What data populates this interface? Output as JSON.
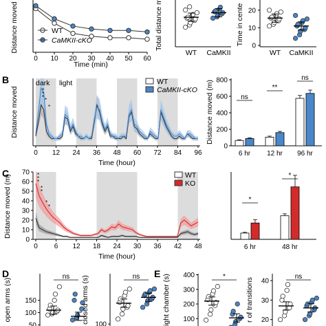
{
  "panels": [
    {
      "id": "A",
      "label": ""
    },
    {
      "id": "B",
      "label": "B"
    },
    {
      "id": "C",
      "label": "C"
    },
    {
      "id": "D",
      "label": "D"
    },
    {
      "id": "E",
      "label": "E"
    }
  ],
  "colors": {
    "wt": "#333333",
    "cko_blue": "#4a86c8",
    "ko_red": "#d42a2a",
    "shade": "#dcdcdc",
    "light_blue": "#a8c8ea",
    "light_red": "#f0a0a0"
  },
  "chart_data": [
    {
      "id": "A1",
      "type": "line",
      "title": "",
      "xlabel": "Time (min)",
      "ylabel": "Distance moved",
      "x": [
        0,
        10,
        20,
        30,
        40,
        50,
        60
      ],
      "xlim": [
        0,
        60
      ],
      "xticks": [
        "0",
        "10",
        "20",
        "30",
        "40",
        "50",
        "60"
      ],
      "legend": [
        "WT",
        "CaMKII-cKO"
      ],
      "series": [
        {
          "name": "WT",
          "values": [
            30,
            20,
            13,
            11,
            10,
            10,
            9
          ]
        },
        {
          "name": "CaMKII-cKO",
          "values": [
            32,
            23,
            18,
            16,
            15,
            15,
            14
          ]
        }
      ]
    },
    {
      "id": "A2",
      "type": "scatter",
      "ylabel": "Total distance m",
      "categories": [
        "WT",
        "CaMKII"
      ],
      "groups": [
        {
          "name": "WT",
          "mean": 62,
          "points": [
            40,
            45,
            50,
            55,
            58,
            60,
            62,
            65,
            68,
            72,
            78,
            85
          ]
        },
        {
          "name": "CaMKII",
          "mean": 72,
          "points": [
            60,
            63,
            66,
            70,
            72,
            74,
            76,
            80,
            84
          ]
        }
      ]
    },
    {
      "id": "A3",
      "type": "scatter",
      "ylabel": "Time in cente",
      "yticks": [
        "0",
        "10",
        "20"
      ],
      "ylim": [
        0,
        25
      ],
      "categories": [
        "WT",
        "CaMKII"
      ],
      "groups": [
        {
          "name": "WT",
          "mean": 15.5,
          "points": [
            11,
            12,
            13,
            14,
            15,
            15.5,
            16,
            17,
            18,
            19,
            20
          ]
        },
        {
          "name": "CaMKII",
          "mean": 11,
          "points": [
            4,
            6,
            8,
            9,
            10,
            11,
            12,
            13,
            14,
            15,
            17
          ]
        }
      ]
    },
    {
      "id": "B1",
      "type": "line",
      "xlabel": "Time (hour)",
      "ylabel": "Distance moved",
      "xticks": [
        "0",
        "12",
        "24",
        "36",
        "48",
        "60",
        "72",
        "84",
        "96"
      ],
      "xlim": [
        0,
        96
      ],
      "annotations": [
        "dark",
        "light"
      ],
      "dark_periods": [
        [
          0,
          12
        ],
        [
          24,
          36
        ],
        [
          48,
          60
        ],
        [
          72,
          84
        ]
      ],
      "legend": [
        "WT",
        "CaMKII-cKO"
      ],
      "series": [
        {
          "name": "WT",
          "values": [
            4,
            10,
            17,
            15,
            6,
            4,
            3,
            3,
            3,
            3,
            4,
            12,
            11,
            6,
            8,
            5,
            4,
            3,
            3,
            4,
            3,
            3,
            10,
            17,
            14,
            9,
            6,
            8,
            4,
            4,
            3,
            3,
            3,
            4,
            3,
            12,
            14,
            8,
            7,
            5,
            4,
            3,
            3,
            5,
            4,
            3,
            3,
            14,
            11,
            8,
            6,
            4,
            3,
            3,
            4,
            3,
            3,
            5,
            4,
            3,
            3,
            3
          ]
        },
        {
          "name": "CaMKII-cKO",
          "values": [
            5,
            14,
            24,
            22,
            9,
            5,
            4,
            3,
            3,
            4,
            5,
            13,
            12,
            7,
            9,
            6,
            4,
            4,
            3,
            4,
            3,
            4,
            11,
            16,
            15,
            10,
            7,
            9,
            5,
            4,
            4,
            3,
            4,
            4,
            4,
            13,
            15,
            9,
            8,
            6,
            5,
            4,
            3,
            6,
            5,
            4,
            3,
            15,
            12,
            9,
            7,
            5,
            4,
            4,
            5,
            4,
            3,
            5,
            5,
            4,
            3,
            3
          ]
        }
      ]
    },
    {
      "id": "B2",
      "type": "bar",
      "ylabel": "Distance moved (m)",
      "ylim": [
        0,
        800
      ],
      "yticks": [
        "0",
        "200",
        "400",
        "600",
        "800"
      ],
      "categories": [
        "6 hr",
        "12 hr",
        "96 hr"
      ],
      "series": [
        {
          "name": "WT",
          "values": [
            65,
            105,
            575
          ],
          "errors": [
            8,
            12,
            35
          ]
        },
        {
          "name": "CaMKII-cKO",
          "values": [
            88,
            160,
            635
          ],
          "errors": [
            10,
            15,
            40
          ]
        }
      ],
      "significance": [
        "ns",
        "**",
        "ns"
      ]
    },
    {
      "id": "C1",
      "type": "line",
      "xlabel": "Time (hour)",
      "ylabel": "Distance moved (m)",
      "ylim": [
        0,
        70
      ],
      "yticks": [
        "0",
        "10",
        "20",
        "30",
        "40",
        "50",
        "60",
        "70"
      ],
      "xticks": [
        "0",
        "6",
        "12",
        "18",
        "24",
        "30",
        "36",
        "42",
        "48"
      ],
      "xlim": [
        0,
        48
      ],
      "dark_periods": [
        [
          0,
          6
        ],
        [
          18,
          30
        ],
        [
          42,
          48
        ]
      ],
      "legend": [
        "WT",
        "KO"
      ],
      "series": [
        {
          "name": "WT",
          "values": [
            22,
            12,
            10,
            8,
            7,
            6,
            5,
            4,
            3,
            3,
            2,
            2,
            2,
            2,
            2,
            2,
            2,
            2,
            2,
            4,
            3,
            2,
            3,
            3,
            3,
            4,
            3,
            3,
            3,
            3,
            2,
            2,
            2,
            2,
            2,
            2,
            2,
            2,
            2,
            2,
            2,
            2,
            6,
            7,
            8,
            6,
            5,
            6
          ]
        },
        {
          "name": "KO",
          "values": [
            58,
            45,
            38,
            32,
            27,
            23,
            20,
            17,
            13,
            10,
            8,
            6,
            5,
            4,
            4,
            4,
            4,
            5,
            6,
            10,
            8,
            10,
            13,
            12,
            16,
            13,
            12,
            11,
            10,
            7,
            5,
            4,
            3,
            3,
            3,
            3,
            3,
            3,
            3,
            3,
            3,
            3,
            17,
            20,
            17,
            14,
            16,
            18
          ]
        }
      ]
    },
    {
      "id": "C2",
      "type": "bar",
      "categories": [
        "6 hr",
        "48 hr"
      ],
      "series": [
        {
          "name": "WT",
          "values": [
            65,
            245
          ],
          "errors": [
            8,
            20
          ]
        },
        {
          "name": "KO",
          "values": [
            170,
            545
          ],
          "errors": [
            35,
            120
          ]
        }
      ],
      "significance": [
        "*",
        "*"
      ]
    },
    {
      "id": "D1",
      "type": "scatter",
      "ylabel": "open arms (s)",
      "yticks": [
        "50",
        "100",
        "150"
      ],
      "categories": [
        "WT",
        "cKO"
      ],
      "significance": "ns",
      "groups": [
        {
          "name": "WT",
          "mean": 110,
          "points": [
            90,
            95,
            100,
            105,
            110,
            115,
            130,
            150,
            175,
            205
          ]
        },
        {
          "name": "cKO",
          "mean": 85,
          "points": [
            70,
            80,
            90,
            115,
            140,
            150,
            175
          ]
        }
      ]
    },
    {
      "id": "D2",
      "type": "scatter",
      "ylabel": "closed arms (s)",
      "yticks": [
        "100"
      ],
      "categories": [
        "WT",
        "cKO"
      ],
      "significance": "ns",
      "groups": [
        {
          "name": "WT",
          "mean": 225,
          "points": [
            130,
            160,
            190,
            200,
            210,
            230,
            250,
            270,
            290,
            310
          ]
        },
        {
          "name": "cKO",
          "mean": 260,
          "points": [
            200,
            220,
            240,
            250,
            260,
            270,
            280,
            290,
            300,
            310
          ]
        }
      ]
    },
    {
      "id": "E1",
      "type": "scatter",
      "ylabel": "ight chamber (s)",
      "yticks": [
        "0",
        "100",
        "200",
        "300",
        "400"
      ],
      "categories": [
        "WT",
        "cKO"
      ],
      "significance": "*",
      "groups": [
        {
          "name": "WT",
          "mean": 220,
          "points": [
            90,
            130,
            160,
            190,
            210,
            230,
            250,
            270,
            290,
            320
          ]
        },
        {
          "name": "cKO",
          "mean": 105,
          "points": [
            40,
            60,
            80,
            100,
            110,
            130,
            150,
            200
          ]
        }
      ]
    },
    {
      "id": "E2",
      "type": "scatter",
      "ylabel": "r of transitions",
      "yticks": [
        "10",
        "20",
        "30",
        "40"
      ],
      "categories": [
        "WT",
        "cKO"
      ],
      "significance": "ns",
      "groups": [
        {
          "name": "WT",
          "mean": 27,
          "points": [
            20,
            22,
            24,
            26,
            28,
            30,
            32,
            35,
            38
          ]
        },
        {
          "name": "cKO",
          "mean": 26,
          "points": [
            20,
            22,
            23,
            25,
            26,
            27,
            28,
            29,
            30,
            31
          ]
        }
      ]
    }
  ]
}
